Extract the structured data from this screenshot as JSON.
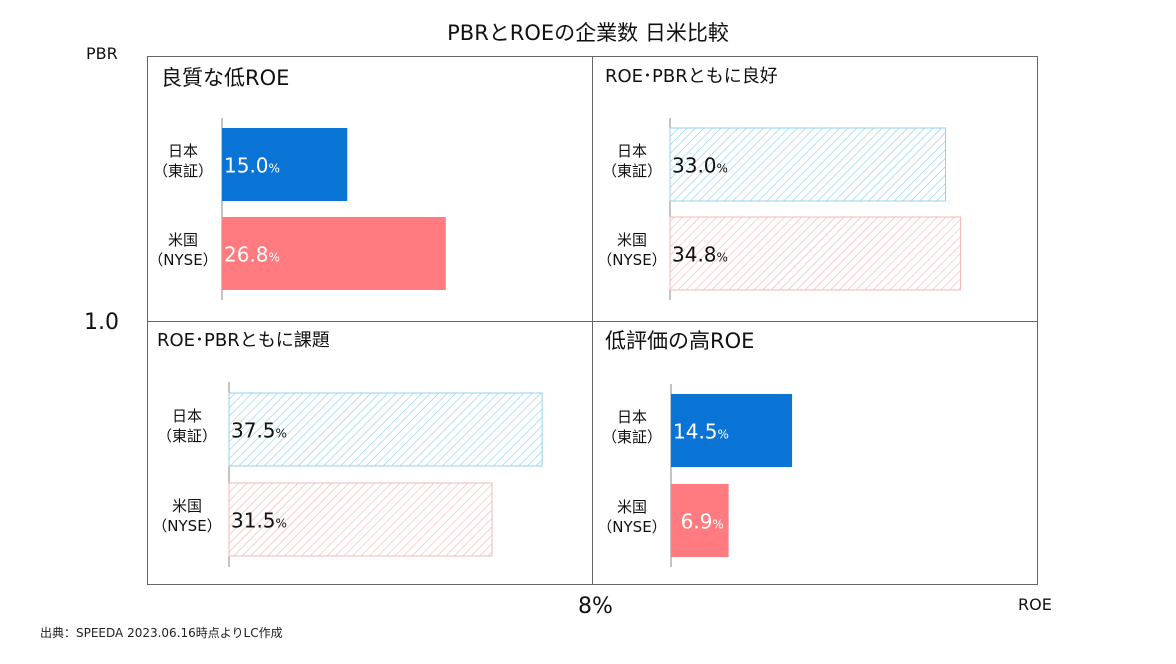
{
  "chart_data": {
    "type": "bar",
    "title": "PBRとROEの企業数 日米比較",
    "xlabel": "ROE",
    "ylabel": "PBR",
    "x_divider_label": "8%",
    "y_divider_label": "1.0",
    "unit": "%",
    "xlim": [
      0,
      40
    ],
    "categories": [
      "日本\n（東証）",
      "米国\n（NYSE）"
    ],
    "quadrants": [
      {
        "id": "top-left",
        "title": "良質な低ROE",
        "emphasis": true,
        "series": [
          {
            "country": "日本（東証）",
            "value": 15.0,
            "label": "15.0",
            "color": "#0a73d6",
            "solid": true
          },
          {
            "country": "米国（NYSE）",
            "value": 26.8,
            "label": "26.8",
            "color": "#ff7b7f",
            "solid": true
          }
        ]
      },
      {
        "id": "top-right",
        "title": "ROE･PBRともに良好",
        "emphasis": false,
        "series": [
          {
            "country": "日本（東証）",
            "value": 33.0,
            "label": "33.0",
            "color": "#8fd0ea",
            "solid": false
          },
          {
            "country": "米国（NYSE）",
            "value": 34.8,
            "label": "34.8",
            "color": "#f6b6b6",
            "solid": false
          }
        ]
      },
      {
        "id": "bottom-left",
        "title": "ROE･PBRともに課題",
        "emphasis": false,
        "series": [
          {
            "country": "日本（東証）",
            "value": 37.5,
            "label": "37.5",
            "color": "#8fd0ea",
            "solid": false
          },
          {
            "country": "米国（NYSE）",
            "value": 31.5,
            "label": "31.5",
            "color": "#f6b6b6",
            "solid": false
          }
        ]
      },
      {
        "id": "bottom-right",
        "title": "低評価の高ROE",
        "emphasis": true,
        "series": [
          {
            "country": "日本（東証）",
            "value": 14.5,
            "label": "14.5",
            "color": "#0a73d6",
            "solid": true
          },
          {
            "country": "米国（NYSE）",
            "value": 6.9,
            "label": "6.9",
            "color": "#ff7b7f",
            "solid": true
          }
        ]
      }
    ]
  },
  "source": "出典：SPEEDA 2023.06.16時点よりLC作成"
}
